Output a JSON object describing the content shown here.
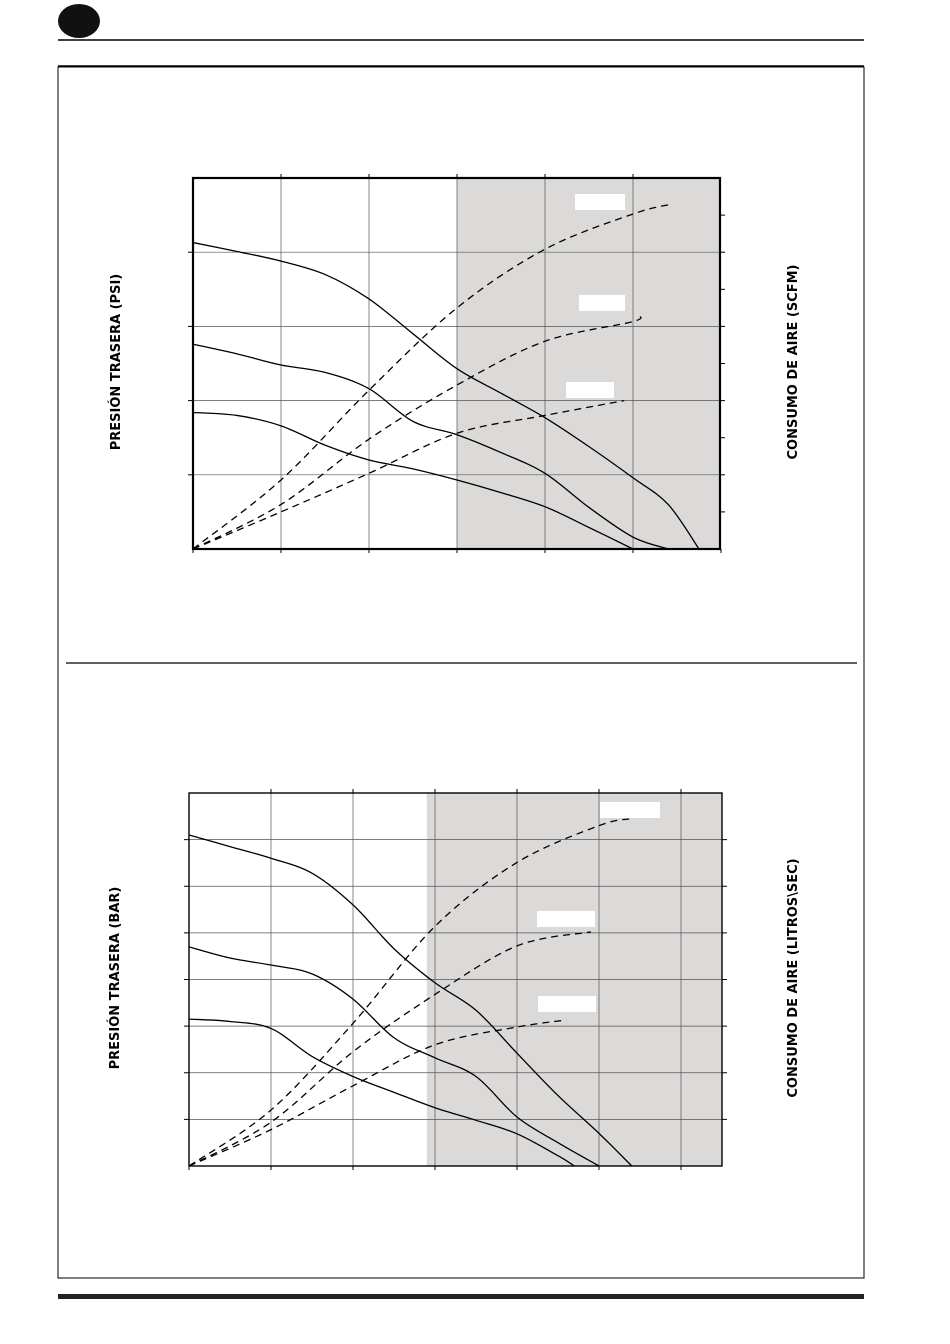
{
  "header": {
    "badge_color": "#111111"
  },
  "chart_data": [
    {
      "type": "line",
      "left_axis_label": "PRESIÓN TRASERA  (PSI)",
      "right_axis_label": "CONSUMO DE AIRE (SCFM)",
      "x_divisions": 6,
      "y_divisions_left": 5,
      "y_divisions_right": 10,
      "shaded_from_division": 3,
      "shade_color": "#dcdad9",
      "series": [
        {
          "style": "solid",
          "values": [
            [
              0,
              4.13
            ],
            [
              0.5,
              4.01
            ],
            [
              1,
              3.88
            ],
            [
              1.5,
              3.7
            ],
            [
              2,
              3.37
            ],
            [
              2.5,
              2.9
            ],
            [
              3,
              2.43
            ],
            [
              3.5,
              2.1
            ],
            [
              4,
              1.77
            ],
            [
              4.5,
              1.38
            ],
            [
              5,
              0.96
            ],
            [
              5.4,
              0.6
            ],
            [
              5.75,
              0.0
            ]
          ]
        },
        {
          "style": "solid",
          "values": [
            [
              0,
              2.76
            ],
            [
              0.5,
              2.63
            ],
            [
              1,
              2.48
            ],
            [
              1.5,
              2.38
            ],
            [
              2,
              2.16
            ],
            [
              2.5,
              1.72
            ],
            [
              3,
              1.54
            ],
            [
              3.5,
              1.3
            ],
            [
              4,
              1.02
            ],
            [
              4.5,
              0.56
            ],
            [
              5,
              0.16
            ],
            [
              5.4,
              0.0
            ]
          ]
        },
        {
          "style": "solid",
          "values": [
            [
              0,
              1.84
            ],
            [
              0.5,
              1.8
            ],
            [
              1,
              1.66
            ],
            [
              1.5,
              1.4
            ],
            [
              2,
              1.2
            ],
            [
              2.5,
              1.08
            ],
            [
              3,
              0.93
            ],
            [
              3.5,
              0.76
            ],
            [
              4,
              0.57
            ],
            [
              4.5,
              0.29
            ],
            [
              5,
              0.0
            ]
          ]
        },
        {
          "style": "dashed",
          "values": [
            [
              0,
              0.0
            ],
            [
              1,
              1.86
            ],
            [
              2,
              4.28
            ],
            [
              3,
              6.5
            ],
            [
              4,
              8.08
            ],
            [
              5,
              9.03
            ],
            [
              5.45,
              9.3
            ]
          ]
        },
        {
          "style": "dashed",
          "values": [
            [
              0,
              0.0
            ],
            [
              1,
              1.2
            ],
            [
              2,
              2.96
            ],
            [
              3,
              4.42
            ],
            [
              4,
              5.6
            ],
            [
              5,
              6.13
            ],
            [
              5.05,
              6.3
            ]
          ]
        },
        {
          "style": "dashed",
          "values": [
            [
              0,
              0.0
            ],
            [
              1,
              1.0
            ],
            [
              2,
              2.04
            ],
            [
              3,
              3.12
            ],
            [
              4,
              3.6
            ],
            [
              4.9,
              4.0
            ]
          ]
        }
      ],
      "series_labels": [
        {
          "near_series": 3,
          "text": ""
        },
        {
          "near_series": 4,
          "text": ""
        },
        {
          "near_series": 5,
          "text": ""
        }
      ]
    },
    {
      "type": "line",
      "left_axis_label": "PRESIÓN TRASERA  (BAR)",
      "right_axis_label": "CONSUMO DE AIRE (LITROS\\SEC)",
      "x_divisions": 6.5,
      "y_divisions_left": 8,
      "y_divisions_right": 8,
      "shaded_from_division": 2.9,
      "shade_color": "#dcdad9",
      "series": [
        {
          "style": "solid",
          "values": [
            [
              0,
              7.1
            ],
            [
              0.5,
              6.85
            ],
            [
              1,
              6.6
            ],
            [
              1.5,
              6.28
            ],
            [
              2,
              5.6
            ],
            [
              2.5,
              4.66
            ],
            [
              3,
              3.93
            ],
            [
              3.5,
              3.34
            ],
            [
              4,
              2.42
            ],
            [
              4.5,
              1.51
            ],
            [
              5,
              0.7
            ],
            [
              5.4,
              0.0
            ]
          ]
        },
        {
          "style": "solid",
          "values": [
            [
              0,
              4.7
            ],
            [
              0.5,
              4.46
            ],
            [
              1,
              4.31
            ],
            [
              1.5,
              4.12
            ],
            [
              2,
              3.58
            ],
            [
              2.5,
              2.75
            ],
            [
              3,
              2.32
            ],
            [
              3.5,
              1.92
            ],
            [
              4,
              1.05
            ],
            [
              4.5,
              0.5
            ],
            [
              5,
              0.0
            ]
          ]
        },
        {
          "style": "solid",
          "values": [
            [
              0,
              3.15
            ],
            [
              0.5,
              3.1
            ],
            [
              1,
              2.95
            ],
            [
              1.5,
              2.35
            ],
            [
              2,
              1.92
            ],
            [
              2.5,
              1.58
            ],
            [
              3,
              1.25
            ],
            [
              3.5,
              0.98
            ],
            [
              4,
              0.69
            ],
            [
              4.5,
              0.22
            ],
            [
              4.7,
              0.0
            ]
          ]
        },
        {
          "style": "dashed",
          "values": [
            [
              0,
              0.0
            ],
            [
              1,
              1.2
            ],
            [
              2,
              3.06
            ],
            [
              3,
              5.14
            ],
            [
              4,
              6.51
            ],
            [
              5,
              7.3
            ],
            [
              5.4,
              7.45
            ]
          ]
        },
        {
          "style": "dashed",
          "values": [
            [
              0,
              0.0
            ],
            [
              1,
              0.94
            ],
            [
              2,
              2.45
            ],
            [
              3,
              3.68
            ],
            [
              4,
              4.72
            ],
            [
              4.9,
              5.02
            ]
          ]
        },
        {
          "style": "dashed",
          "values": [
            [
              0,
              0.0
            ],
            [
              1,
              0.78
            ],
            [
              2,
              1.72
            ],
            [
              3,
              2.6
            ],
            [
              4,
              2.98
            ],
            [
              4.6,
              3.13
            ]
          ]
        }
      ],
      "series_labels": [
        {
          "near_series": 3,
          "text": ""
        },
        {
          "near_series": 4,
          "text": ""
        },
        {
          "near_series": 5,
          "text": ""
        }
      ]
    }
  ]
}
